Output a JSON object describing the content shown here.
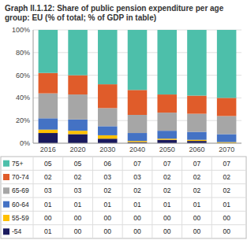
{
  "chart_data": {
    "type": "bar",
    "stacked": true,
    "title": "Graph II.1.12: Share of public pension expenditure per age group: EU (% of total; % of GDP in table)",
    "categories": [
      "2016",
      "2020",
      "2030",
      "2040",
      "2050",
      "2060",
      "2070"
    ],
    "series": [
      {
        "name": "-54",
        "color": "#1a1a5e",
        "values": [
          9,
          8,
          4,
          1,
          3,
          2,
          0
        ]
      },
      {
        "name": "55-59",
        "color": "#ffc000",
        "values": [
          3,
          3,
          3,
          1,
          1,
          1,
          1
        ]
      },
      {
        "name": "60-64",
        "color": "#4472c4",
        "values": [
          10,
          10,
          8,
          7,
          7,
          7,
          7
        ]
      },
      {
        "name": "65-69",
        "color": "#a6a6a6",
        "values": [
          22,
          22,
          16,
          16,
          16,
          16,
          16
        ]
      },
      {
        "name": "70-74",
        "color": "#e05c2a",
        "values": [
          18,
          17,
          21,
          22,
          16,
          16,
          16
        ]
      },
      {
        "name": "75+",
        "color": "#4dbfaa",
        "values": [
          38,
          40,
          48,
          53,
          57,
          58,
          60
        ]
      }
    ],
    "ylim": [
      0,
      100
    ],
    "yticks": [
      {
        "value": 0,
        "label": "0%"
      },
      {
        "value": 20,
        "label": "20%"
      },
      {
        "value": 40,
        "label": "40%"
      },
      {
        "value": 60,
        "label": "60%"
      },
      {
        "value": 80,
        "label": "80%"
      },
      {
        "value": 100,
        "label": "100%"
      }
    ],
    "grid": true,
    "table": [
      {
        "name": "75+",
        "values": [
          "05",
          "05",
          "06",
          "07",
          "07",
          "07",
          "07"
        ]
      },
      {
        "name": "70-74",
        "values": [
          "02",
          "02",
          "03",
          "03",
          "02",
          "02",
          "02"
        ]
      },
      {
        "name": "65-69",
        "values": [
          "03",
          "03",
          "02",
          "02",
          "02",
          "02",
          "02"
        ]
      },
      {
        "name": "60-64",
        "values": [
          "01",
          "01",
          "01",
          "01",
          "01",
          "01",
          "01"
        ]
      },
      {
        "name": "55-59",
        "values": [
          "00",
          "00",
          "00",
          "00",
          "00",
          "00",
          "00"
        ]
      },
      {
        "name": "-54",
        "values": [
          "01",
          "00",
          "00",
          "00",
          "00",
          "00",
          "00"
        ]
      }
    ]
  }
}
